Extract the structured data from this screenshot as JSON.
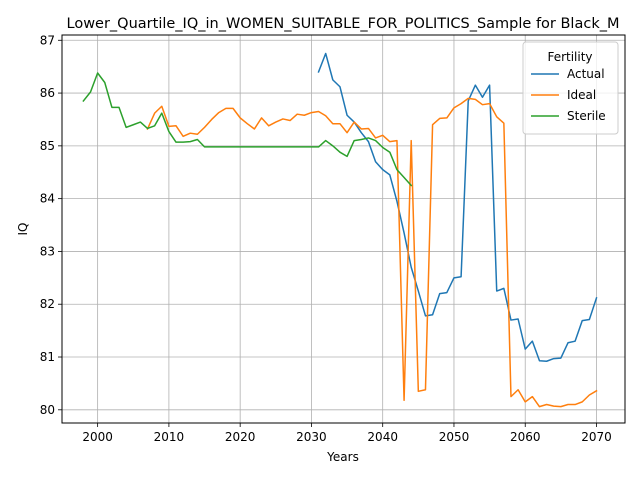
{
  "chart_data": {
    "type": "line",
    "title": "Lower_Quartile_IQ_in_WOMEN_SUITABLE_FOR_POLITICS_Sample for Black_M",
    "xlabel": "Years",
    "ylabel": "IQ",
    "xlim": [
      1995,
      2074
    ],
    "ylim": [
      79.75,
      87.1
    ],
    "xticks": [
      2000,
      2010,
      2020,
      2030,
      2040,
      2050,
      2060,
      2070
    ],
    "yticks": [
      80,
      81,
      82,
      83,
      84,
      85,
      86,
      87
    ],
    "grid": true,
    "legend": {
      "title": "Fertility",
      "placement": "top-right"
    },
    "series": [
      {
        "name": "Actual",
        "color": "#1f77b4",
        "x": [
          2031,
          2032,
          2033,
          2034,
          2035,
          2036,
          2037,
          2038,
          2039,
          2040,
          2041,
          2042,
          2043,
          2044,
          2045,
          2046,
          2047,
          2048,
          2049,
          2050,
          2051,
          2052,
          2053,
          2054,
          2055,
          2056,
          2057,
          2058,
          2059,
          2060,
          2061,
          2062,
          2063,
          2064,
          2065,
          2066,
          2067,
          2068,
          2069,
          2070
        ],
        "y": [
          86.4,
          86.75,
          86.25,
          86.12,
          85.58,
          85.45,
          85.25,
          85.08,
          84.7,
          84.55,
          84.45,
          83.95,
          83.35,
          82.7,
          82.25,
          81.78,
          81.8,
          82.2,
          82.22,
          82.5,
          82.52,
          85.85,
          86.15,
          85.92,
          86.15,
          82.25,
          82.3,
          81.7,
          81.72,
          81.15,
          81.3,
          80.93,
          80.92,
          80.97,
          80.98,
          81.27,
          81.3,
          81.69,
          81.71,
          82.12
        ]
      },
      {
        "name": "Ideal",
        "color": "#ff7f0e",
        "x": [
          2007,
          2008,
          2009,
          2010,
          2011,
          2012,
          2013,
          2014,
          2015,
          2016,
          2017,
          2018,
          2019,
          2020,
          2021,
          2022,
          2023,
          2024,
          2025,
          2026,
          2027,
          2028,
          2029,
          2030,
          2031,
          2032,
          2033,
          2034,
          2035,
          2036,
          2037,
          2038,
          2039,
          2040,
          2041,
          2042,
          2043,
          2044,
          2045,
          2046,
          2047,
          2048,
          2049,
          2050,
          2051,
          2052,
          2053,
          2054,
          2055,
          2056,
          2057,
          2058,
          2059,
          2060,
          2061,
          2062,
          2063,
          2064,
          2065,
          2066,
          2067,
          2068,
          2069,
          2070
        ],
        "y": [
          85.32,
          85.62,
          85.75,
          85.37,
          85.38,
          85.18,
          85.24,
          85.22,
          85.35,
          85.5,
          85.63,
          85.71,
          85.71,
          85.53,
          85.42,
          85.32,
          85.53,
          85.38,
          85.45,
          85.51,
          85.48,
          85.6,
          85.58,
          85.63,
          85.65,
          85.57,
          85.42,
          85.42,
          85.25,
          85.45,
          85.32,
          85.33,
          85.15,
          85.2,
          85.08,
          85.1,
          80.18,
          85.1,
          80.35,
          80.38,
          85.4,
          85.52,
          85.53,
          85.72,
          85.8,
          85.9,
          85.88,
          85.78,
          85.8,
          85.55,
          85.43,
          80.25,
          80.38,
          80.15,
          80.25,
          80.06,
          80.1,
          80.07,
          80.06,
          80.1,
          80.1,
          80.15,
          80.28,
          80.36
        ]
      },
      {
        "name": "Sterile",
        "color": "#2ca02c",
        "x": [
          1998,
          1999,
          2000,
          2001,
          2002,
          2003,
          2004,
          2005,
          2006,
          2007,
          2008,
          2009,
          2010,
          2011,
          2012,
          2013,
          2014,
          2015,
          2016,
          2017,
          2018,
          2019,
          2020,
          2021,
          2022,
          2023,
          2024,
          2025,
          2026,
          2027,
          2028,
          2029,
          2030,
          2031,
          2032,
          2033,
          2034,
          2035,
          2036,
          2037,
          2038,
          2039,
          2040,
          2041,
          2042,
          2043,
          2044
        ],
        "y": [
          85.85,
          86.02,
          86.38,
          86.2,
          85.73,
          85.73,
          85.35,
          85.4,
          85.45,
          85.33,
          85.38,
          85.62,
          85.27,
          85.07,
          85.07,
          85.08,
          85.12,
          84.98,
          84.98,
          84.98,
          84.98,
          84.98,
          84.98,
          84.98,
          84.98,
          84.98,
          84.98,
          84.98,
          84.98,
          84.98,
          84.98,
          84.98,
          84.98,
          84.98,
          85.1,
          85.0,
          84.88,
          84.8,
          85.1,
          85.12,
          85.15,
          85.1,
          84.97,
          84.88,
          84.55,
          84.4,
          84.25
        ]
      }
    ]
  }
}
